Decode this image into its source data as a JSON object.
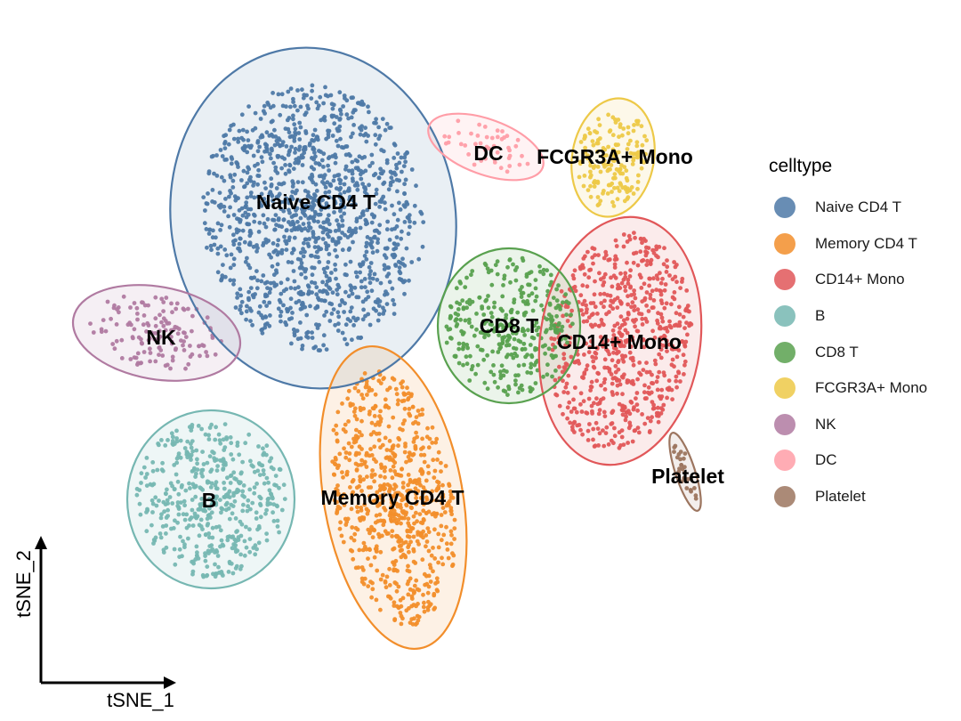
{
  "chart_data": {
    "type": "scatter",
    "title": "",
    "xlabel": "tSNE_1",
    "ylabel": "tSNE_2",
    "grid": false,
    "legend": {
      "title": "celltype",
      "placement": "right"
    },
    "series": [
      {
        "name": "Naive CD4 T",
        "label": "Naive CD4 T",
        "color": "#4E79A7",
        "n_points": 1250
      },
      {
        "name": "Memory CD4 T",
        "label": "Memory CD4 T",
        "color": "#F28E2B",
        "n_points": 720
      },
      {
        "name": "CD14+ Mono",
        "label": "CD14+ Mono",
        "color": "#E15759",
        "n_points": 650
      },
      {
        "name": "B",
        "label": "B",
        "color": "#76B7B2",
        "n_points": 480
      },
      {
        "name": "CD8 T",
        "label": "CD8 T",
        "color": "#59A14F",
        "n_points": 340
      },
      {
        "name": "FCGR3A+ Mono",
        "label": "FCGR3A+ Mono",
        "color": "#EDC948",
        "n_points": 170
      },
      {
        "name": "NK",
        "label": "NK",
        "color": "#B07AA1",
        "n_points": 140
      },
      {
        "name": "DC",
        "label": "DC",
        "color": "#FF9DA7",
        "n_points": 45
      },
      {
        "name": "Platelet",
        "label": "Platelet",
        "color": "#9C755F",
        "n_points": 30
      }
    ]
  }
}
